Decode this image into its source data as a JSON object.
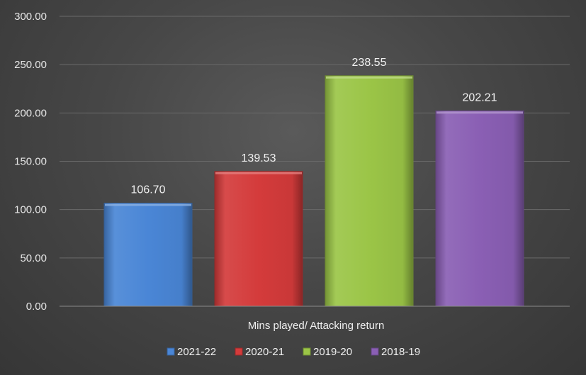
{
  "chart_data": {
    "type": "bar",
    "title": "",
    "xlabel": "",
    "ylabel": "",
    "categories": [
      "Mins played/ Attacking return"
    ],
    "series": [
      {
        "name": "2021-22",
        "values": [
          106.7
        ],
        "label": "106.70",
        "color": "#4a86d6"
      },
      {
        "name": "2020-21",
        "values": [
          139.53
        ],
        "label": "139.53",
        "color": "#d43b3b"
      },
      {
        "name": "2019-20",
        "values": [
          238.55
        ],
        "label": "238.55",
        "color": "#9bc547"
      },
      {
        "name": "2018-19",
        "values": [
          202.21
        ],
        "label": "202.21",
        "color": "#8a5fb4"
      }
    ],
    "ylim": [
      0,
      300
    ],
    "yticks": [
      "0.00",
      "50.00",
      "100.00",
      "150.00",
      "200.00",
      "250.00",
      "300.00"
    ],
    "grid": true,
    "legend_position": "bottom",
    "show_data_labels": true
  }
}
